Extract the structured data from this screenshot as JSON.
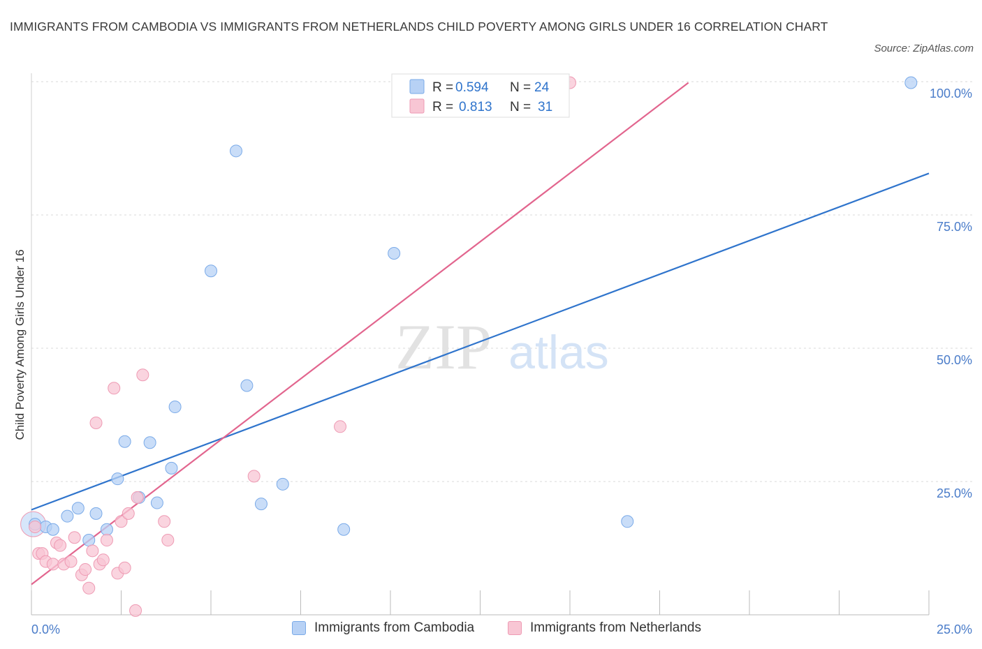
{
  "header": {
    "title": "IMMIGRANTS FROM CAMBODIA VS IMMIGRANTS FROM NETHERLANDS CHILD POVERTY AMONG GIRLS UNDER 16 CORRELATION CHART",
    "source": "Source: ZipAtlas.com"
  },
  "watermark": {
    "zip": "ZIP",
    "atlas": "atlas"
  },
  "colors": {
    "cambodia_fill": "#b7d1f5",
    "cambodia_stroke": "#7aaae8",
    "cambodia_line": "#2f74cc",
    "netherlands_fill": "#f8c6d4",
    "netherlands_stroke": "#ee9ab3",
    "netherlands_line": "#e2658e",
    "tick_label": "#4a7cc9",
    "grid": "#d9d9d9"
  },
  "chart_data": {
    "type": "scatter",
    "title": "IMMIGRANTS FROM CAMBODIA VS IMMIGRANTS FROM NETHERLANDS CHILD POVERTY AMONG GIRLS UNDER 16 CORRELATION CHART",
    "xlabel": "",
    "ylabel": "Child Poverty Among Girls Under 16",
    "xlim": [
      0,
      25
    ],
    "ylim": [
      0,
      100
    ],
    "x_tick_labels": [
      "0.0%",
      "25.0%"
    ],
    "y_tick_labels": [
      "25.0%",
      "50.0%",
      "75.0%",
      "100.0%"
    ],
    "y_ticks": [
      25,
      50,
      75,
      100
    ],
    "grid": true,
    "legend_position": "top-center",
    "series": [
      {
        "name": "Immigrants from Cambodia",
        "R": "0.594",
        "N": "24",
        "points": [
          {
            "x": 0.1,
            "y": 17.0
          },
          {
            "x": 0.4,
            "y": 16.5
          },
          {
            "x": 1.0,
            "y": 18.5
          },
          {
            "x": 1.3,
            "y": 20.0
          },
          {
            "x": 1.6,
            "y": 14.0
          },
          {
            "x": 1.8,
            "y": 19.0
          },
          {
            "x": 2.1,
            "y": 16.0
          },
          {
            "x": 2.4,
            "y": 25.5
          },
          {
            "x": 2.6,
            "y": 32.5
          },
          {
            "x": 3.0,
            "y": 22.0
          },
          {
            "x": 3.3,
            "y": 32.3
          },
          {
            "x": 3.5,
            "y": 21.0
          },
          {
            "x": 3.9,
            "y": 27.5
          },
          {
            "x": 4.0,
            "y": 39.0
          },
          {
            "x": 5.0,
            "y": 64.5
          },
          {
            "x": 5.7,
            "y": 87.0
          },
          {
            "x": 6.0,
            "y": 43.0
          },
          {
            "x": 6.4,
            "y": 20.8
          },
          {
            "x": 7.0,
            "y": 24.5
          },
          {
            "x": 8.7,
            "y": 16.0
          },
          {
            "x": 10.1,
            "y": 67.8
          },
          {
            "x": 16.6,
            "y": 17.5
          },
          {
            "x": 24.5,
            "y": 99.8
          },
          {
            "x": 0.6,
            "y": 16.0
          }
        ],
        "trend": {
          "x0": 0,
          "y0": 19.7,
          "x1": 25,
          "y1": 82.8
        }
      },
      {
        "name": "Immigrants from Netherlands",
        "R": "0.813",
        "N": "31",
        "points": [
          {
            "x": 0.1,
            "y": 16.5
          },
          {
            "x": 0.2,
            "y": 11.5
          },
          {
            "x": 0.3,
            "y": 11.5
          },
          {
            "x": 0.4,
            "y": 10.0
          },
          {
            "x": 0.6,
            "y": 9.5
          },
          {
            "x": 0.7,
            "y": 13.5
          },
          {
            "x": 0.8,
            "y": 13.0
          },
          {
            "x": 0.9,
            "y": 9.5
          },
          {
            "x": 1.1,
            "y": 10.0
          },
          {
            "x": 1.2,
            "y": 14.5
          },
          {
            "x": 1.4,
            "y": 7.5
          },
          {
            "x": 1.5,
            "y": 8.5
          },
          {
            "x": 1.6,
            "y": 5.0
          },
          {
            "x": 1.7,
            "y": 12.0
          },
          {
            "x": 1.8,
            "y": 36.0
          },
          {
            "x": 1.9,
            "y": 9.5
          },
          {
            "x": 2.0,
            "y": 10.3
          },
          {
            "x": 2.1,
            "y": 14.0
          },
          {
            "x": 2.3,
            "y": 42.5
          },
          {
            "x": 2.4,
            "y": 7.8
          },
          {
            "x": 2.5,
            "y": 17.5
          },
          {
            "x": 2.6,
            "y": 8.8
          },
          {
            "x": 2.7,
            "y": 19.0
          },
          {
            "x": 2.9,
            "y": 0.8
          },
          {
            "x": 2.95,
            "y": 22.0
          },
          {
            "x": 3.1,
            "y": 45.0
          },
          {
            "x": 3.7,
            "y": 17.5
          },
          {
            "x": 3.8,
            "y": 14.0
          },
          {
            "x": 6.2,
            "y": 26.0
          },
          {
            "x": 8.6,
            "y": 35.3
          },
          {
            "x": 15.0,
            "y": 99.8
          }
        ],
        "trend": {
          "x0": 0,
          "y0": 5.7,
          "x1": 18.3,
          "y1": 99.8
        }
      }
    ]
  }
}
